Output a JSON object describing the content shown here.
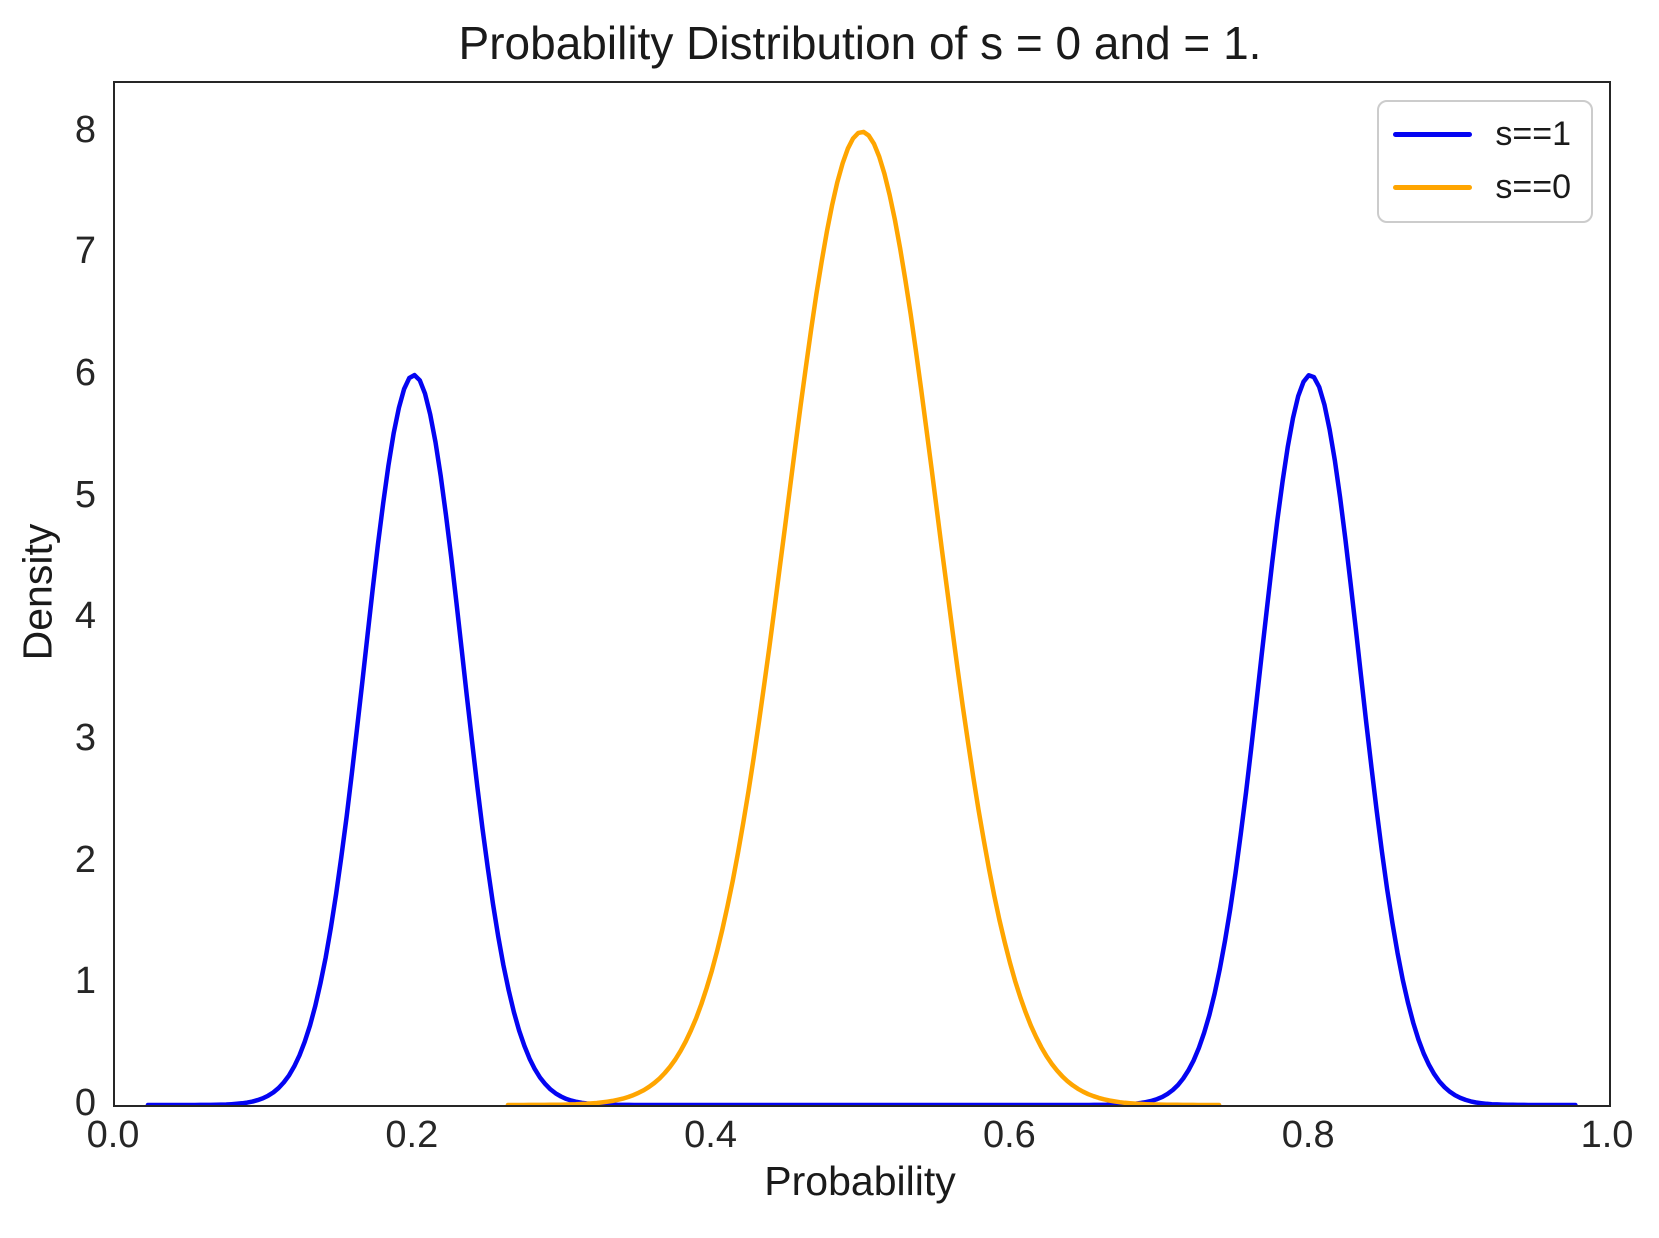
{
  "chart_data": {
    "type": "line",
    "subtype": "kde-density-curves",
    "title": "Probability Distribution of s = 0 and = 1.",
    "xlabel": "Probability",
    "ylabel": "Density",
    "xlim": [
      0.0,
      1.0
    ],
    "ylim": [
      0.0,
      8.4
    ],
    "grid": false,
    "legend_position": "upper right",
    "xticks": [
      {
        "value": 0.0,
        "label": "0.0"
      },
      {
        "value": 0.2,
        "label": "0.2"
      },
      {
        "value": 0.4,
        "label": "0.4"
      },
      {
        "value": 0.6,
        "label": "0.6"
      },
      {
        "value": 0.8,
        "label": "0.8"
      },
      {
        "value": 1.0,
        "label": "1.0"
      }
    ],
    "yticks": [
      {
        "value": 0,
        "label": "0"
      },
      {
        "value": 1,
        "label": "1"
      },
      {
        "value": 2,
        "label": "2"
      },
      {
        "value": 3,
        "label": "3"
      },
      {
        "value": 4,
        "label": "4"
      },
      {
        "value": 5,
        "label": "5"
      },
      {
        "value": 6,
        "label": "6"
      },
      {
        "value": 7,
        "label": "7"
      },
      {
        "value": 8,
        "label": "8"
      }
    ],
    "series": [
      {
        "name": "s==1",
        "color": "#0404f2",
        "line_width": 4.5,
        "support": [
          0.022,
          0.978
        ],
        "peaks": [
          {
            "x": 0.2,
            "y": 6.0
          },
          {
            "x": 0.8,
            "y": 6.0
          }
        ],
        "components": [
          {
            "mean": 0.2,
            "sd": 0.033,
            "amplitude": 6.0
          },
          {
            "mean": 0.8,
            "sd": 0.033,
            "amplitude": 6.0
          }
        ]
      },
      {
        "name": "s==0",
        "color": "#ffa500",
        "line_width": 4.5,
        "support": [
          0.263,
          0.742
        ],
        "peaks": [
          {
            "x": 0.5,
            "y": 8.0
          }
        ],
        "components": [
          {
            "mean": 0.5,
            "sd": 0.0505,
            "amplitude": 8.0
          }
        ]
      }
    ]
  },
  "legend": {
    "items": [
      {
        "label": "s==1",
        "color": "#0404f2"
      },
      {
        "label": "s==0",
        "color": "#ffa500"
      }
    ]
  }
}
